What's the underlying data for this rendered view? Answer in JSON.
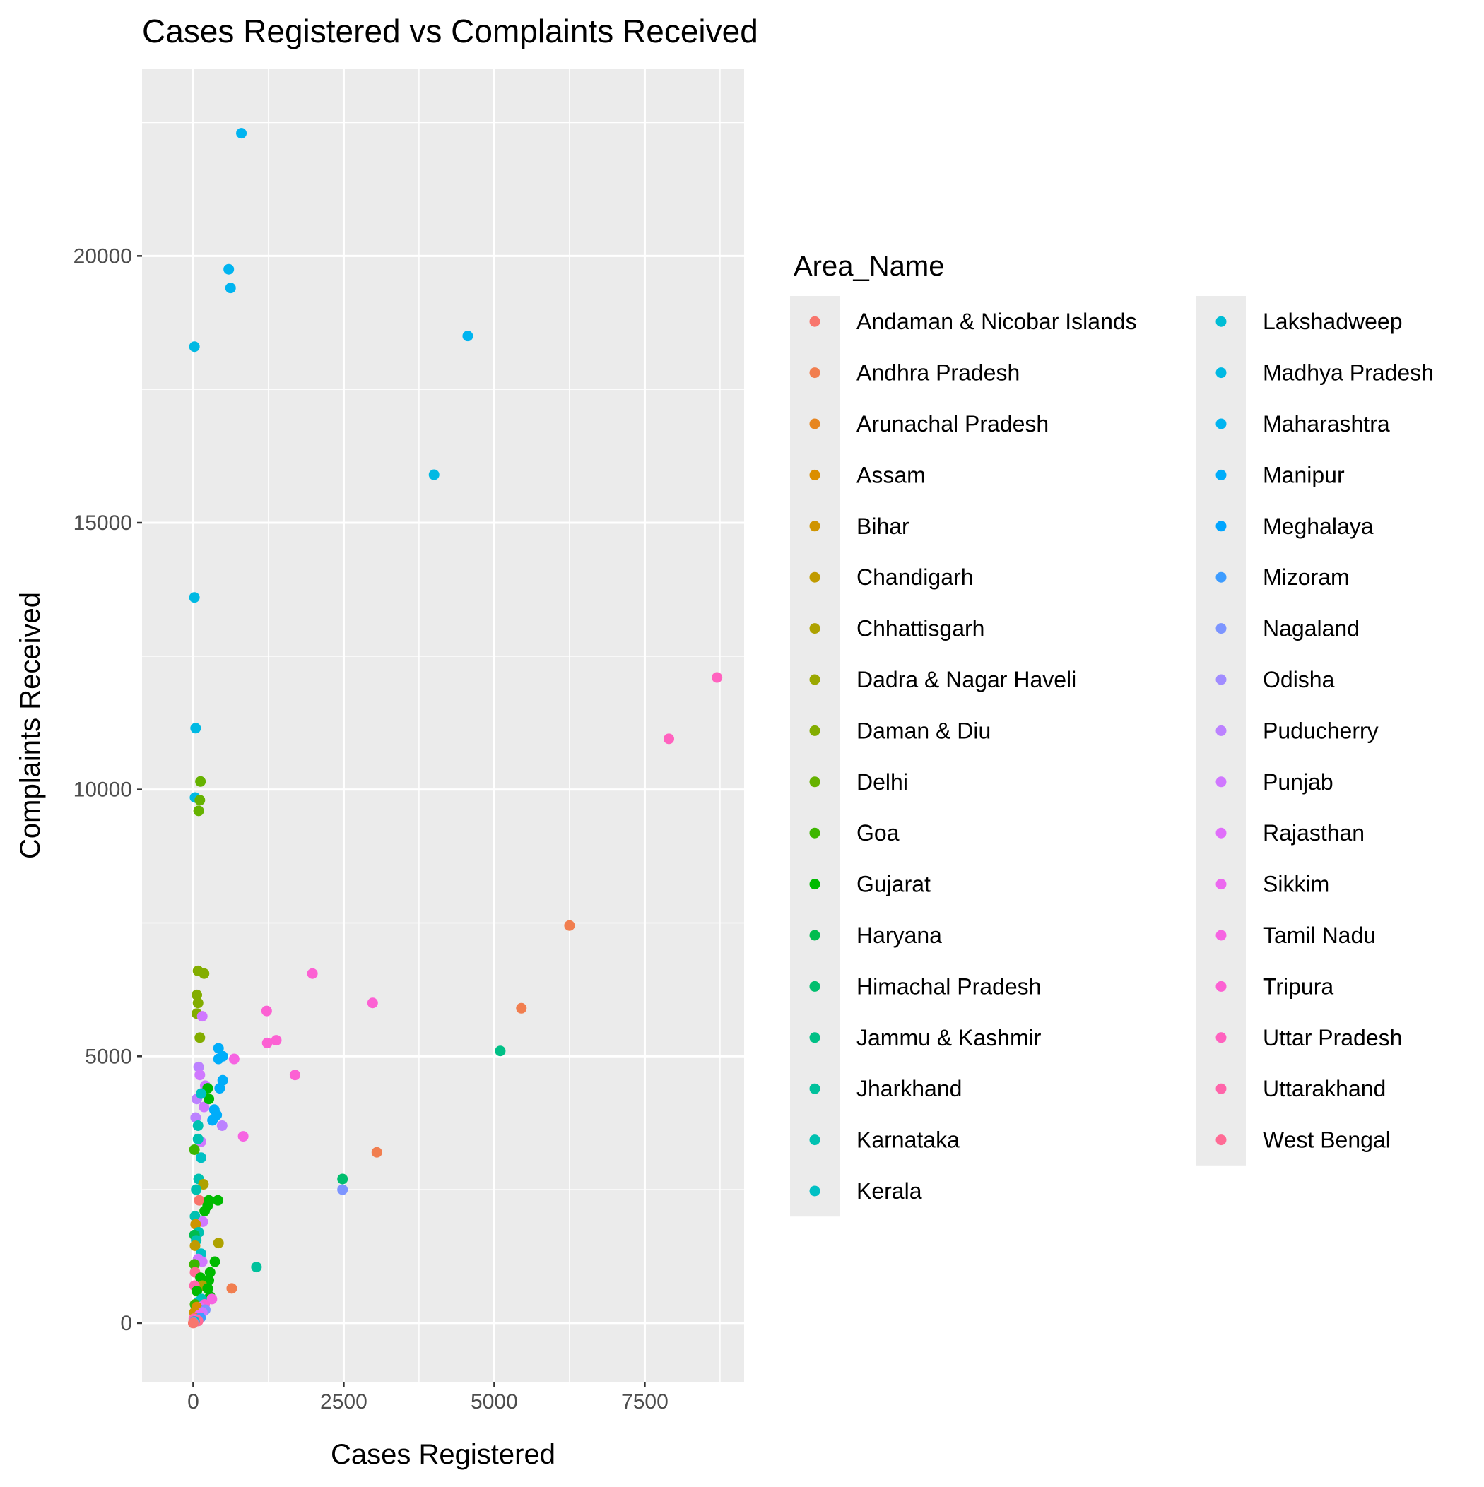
{
  "chart_data": {
    "type": "scatter",
    "title": "Cases Registered vs Complaints Received",
    "xlabel": "Cases Registered",
    "ylabel": "Complaints Received",
    "xlim": [
      -850,
      9150
    ],
    "ylim": [
      -1100,
      23500
    ],
    "x_ticks": [
      0,
      2500,
      5000,
      7500
    ],
    "y_ticks": [
      0,
      5000,
      10000,
      15000,
      20000
    ],
    "grid": true,
    "legend": {
      "title": "Area_Name",
      "placement": "right",
      "columns": 2,
      "entries": [
        {
          "name": "Andaman & Nicobar Islands",
          "color": "#F8766D"
        },
        {
          "name": "Andhra Pradesh",
          "color": "#F17E4F"
        },
        {
          "name": "Arunachal Pradesh",
          "color": "#E7851E"
        },
        {
          "name": "Assam",
          "color": "#DB8E00"
        },
        {
          "name": "Bihar",
          "color": "#CF9400"
        },
        {
          "name": "Chandigarh",
          "color": "#C09B00"
        },
        {
          "name": "Chhattisgarh",
          "color": "#AEA200"
        },
        {
          "name": "Dadra & Nagar Haveli",
          "color": "#9BA800"
        },
        {
          "name": "Daman & Diu",
          "color": "#83AD00"
        },
        {
          "name": "Delhi",
          "color": "#66B200"
        },
        {
          "name": "Goa",
          "color": "#3DB600"
        },
        {
          "name": "Gujarat",
          "color": "#00BA00"
        },
        {
          "name": "Haryana",
          "color": "#00BC4F"
        },
        {
          "name": "Himachal Pradesh",
          "color": "#00BE6E"
        },
        {
          "name": "Jammu & Kashmir",
          "color": "#00C086"
        },
        {
          "name": "Jharkhand",
          "color": "#00C19C"
        },
        {
          "name": "Karnataka",
          "color": "#00C1B1"
        },
        {
          "name": "Kerala",
          "color": "#00C0C4"
        },
        {
          "name": "Lakshadweep",
          "color": "#00BDD5"
        },
        {
          "name": "Madhya Pradesh",
          "color": "#00B9E3"
        },
        {
          "name": "Maharashtra",
          "color": "#00B4F0"
        },
        {
          "name": "Manipur",
          "color": "#00ADFA"
        },
        {
          "name": "Meghalaya",
          "color": "#00A5FF"
        },
        {
          "name": "Mizoram",
          "color": "#3D9CFF"
        },
        {
          "name": "Nagaland",
          "color": "#7D95FF"
        },
        {
          "name": "Odisha",
          "color": "#A18CFF"
        },
        {
          "name": "Puducherry",
          "color": "#BC82FF"
        },
        {
          "name": "Punjab",
          "color": "#D078FF"
        },
        {
          "name": "Rajasthan",
          "color": "#E06EFA"
        },
        {
          "name": "Sikkim",
          "color": "#EC69EF"
        },
        {
          "name": "Tamil Nadu",
          "color": "#F664E2"
        },
        {
          "name": "Tripura",
          "color": "#FC61D3"
        },
        {
          "name": "Uttar Pradesh",
          "color": "#FF62BF"
        },
        {
          "name": "Uttarakhand",
          "color": "#FF65AA"
        },
        {
          "name": "West Bengal",
          "color": "#FF6B95"
        }
      ]
    },
    "points": [
      {
        "x": 800,
        "y": 22300,
        "group": "Maharashtra"
      },
      {
        "x": 590,
        "y": 19750,
        "group": "Maharashtra"
      },
      {
        "x": 620,
        "y": 19400,
        "group": "Maharashtra"
      },
      {
        "x": 4560,
        "y": 18500,
        "group": "Maharashtra"
      },
      {
        "x": 20,
        "y": 18300,
        "group": "Madhya Pradesh"
      },
      {
        "x": 4000,
        "y": 15900,
        "group": "Madhya Pradesh"
      },
      {
        "x": 20,
        "y": 13600,
        "group": "Madhya Pradesh"
      },
      {
        "x": 40,
        "y": 11150,
        "group": "Madhya Pradesh"
      },
      {
        "x": 30,
        "y": 9850,
        "group": "Madhya Pradesh"
      },
      {
        "x": 8700,
        "y": 12100,
        "group": "Uttar Pradesh"
      },
      {
        "x": 7900,
        "y": 10950,
        "group": "Uttar Pradesh"
      },
      {
        "x": 120,
        "y": 10150,
        "group": "Delhi"
      },
      {
        "x": 110,
        "y": 9800,
        "group": "Delhi"
      },
      {
        "x": 90,
        "y": 9600,
        "group": "Delhi"
      },
      {
        "x": 6250,
        "y": 7450,
        "group": "Andhra Pradesh"
      },
      {
        "x": 5450,
        "y": 5900,
        "group": "Andhra Pradesh"
      },
      {
        "x": 3050,
        "y": 3200,
        "group": "Andhra Pradesh"
      },
      {
        "x": 640,
        "y": 650,
        "group": "Andhra Pradesh"
      },
      {
        "x": 5100,
        "y": 5100,
        "group": "Jammu & Kashmir"
      },
      {
        "x": 2480,
        "y": 2700,
        "group": "Himachal Pradesh"
      },
      {
        "x": 1050,
        "y": 1050,
        "group": "Jharkhand"
      },
      {
        "x": 2480,
        "y": 2500,
        "group": "Nagaland"
      },
      {
        "x": 1980,
        "y": 6550,
        "group": "Tripura"
      },
      {
        "x": 2980,
        "y": 6000,
        "group": "Tripura"
      },
      {
        "x": 1220,
        "y": 5850,
        "group": "Tripura"
      },
      {
        "x": 1380,
        "y": 5300,
        "group": "Tripura"
      },
      {
        "x": 1230,
        "y": 5250,
        "group": "Tripura"
      },
      {
        "x": 680,
        "y": 4950,
        "group": "Tamil Nadu"
      },
      {
        "x": 1690,
        "y": 4650,
        "group": "Tripura"
      },
      {
        "x": 830,
        "y": 3500,
        "group": "Tamil Nadu"
      },
      {
        "x": 80,
        "y": 6600,
        "group": "Daman & Diu"
      },
      {
        "x": 180,
        "y": 6550,
        "group": "Daman & Diu"
      },
      {
        "x": 60,
        "y": 6150,
        "group": "Daman & Diu"
      },
      {
        "x": 80,
        "y": 6000,
        "group": "Daman & Diu"
      },
      {
        "x": 60,
        "y": 5800,
        "group": "Daman & Diu"
      },
      {
        "x": 110,
        "y": 5350,
        "group": "Daman & Diu"
      },
      {
        "x": 150,
        "y": 5750,
        "group": "Punjab"
      },
      {
        "x": 420,
        "y": 5150,
        "group": "Manipur"
      },
      {
        "x": 420,
        "y": 4950,
        "group": "Manipur"
      },
      {
        "x": 490,
        "y": 5000,
        "group": "Manipur"
      },
      {
        "x": 490,
        "y": 4550,
        "group": "Manipur"
      },
      {
        "x": 440,
        "y": 4400,
        "group": "Manipur"
      },
      {
        "x": 350,
        "y": 4000,
        "group": "Manipur"
      },
      {
        "x": 390,
        "y": 3900,
        "group": "Manipur"
      },
      {
        "x": 320,
        "y": 3800,
        "group": "Manipur"
      },
      {
        "x": 90,
        "y": 4800,
        "group": "Puducherry"
      },
      {
        "x": 110,
        "y": 4650,
        "group": "Punjab"
      },
      {
        "x": 200,
        "y": 4450,
        "group": "Punjab"
      },
      {
        "x": 60,
        "y": 4200,
        "group": "Puducherry"
      },
      {
        "x": 180,
        "y": 4050,
        "group": "Punjab"
      },
      {
        "x": 40,
        "y": 3850,
        "group": "Puducherry"
      },
      {
        "x": 480,
        "y": 3700,
        "group": "Puducherry"
      },
      {
        "x": 130,
        "y": 3400,
        "group": "Punjab"
      },
      {
        "x": 240,
        "y": 4400,
        "group": "Gujarat"
      },
      {
        "x": 260,
        "y": 4200,
        "group": "Gujarat"
      },
      {
        "x": 130,
        "y": 4300,
        "group": "Kerala"
      },
      {
        "x": 80,
        "y": 3700,
        "group": "Karnataka"
      },
      {
        "x": 80,
        "y": 3450,
        "group": "Karnataka"
      },
      {
        "x": 130,
        "y": 3100,
        "group": "Kerala"
      },
      {
        "x": 20,
        "y": 3250,
        "group": "Goa"
      },
      {
        "x": 90,
        "y": 2700,
        "group": "Karnataka"
      },
      {
        "x": 170,
        "y": 2600,
        "group": "Chhattisgarh"
      },
      {
        "x": 50,
        "y": 2500,
        "group": "Karnataka"
      },
      {
        "x": 100,
        "y": 2300,
        "group": "Andaman & Nicobar Islands"
      },
      {
        "x": 410,
        "y": 2300,
        "group": "Gujarat"
      },
      {
        "x": 260,
        "y": 2300,
        "group": "Gujarat"
      },
      {
        "x": 240,
        "y": 2200,
        "group": "Gujarat"
      },
      {
        "x": 190,
        "y": 2100,
        "group": "Gujarat"
      },
      {
        "x": 30,
        "y": 2000,
        "group": "Karnataka"
      },
      {
        "x": 160,
        "y": 1900,
        "group": "Punjab"
      },
      {
        "x": 40,
        "y": 1850,
        "group": "Bihar"
      },
      {
        "x": 90,
        "y": 1700,
        "group": "Karnataka"
      },
      {
        "x": 20,
        "y": 1650,
        "group": "Haryana"
      },
      {
        "x": 50,
        "y": 1550,
        "group": "Karnataka"
      },
      {
        "x": 420,
        "y": 1500,
        "group": "Chhattisgarh"
      },
      {
        "x": 30,
        "y": 1450,
        "group": "Chandigarh"
      },
      {
        "x": 130,
        "y": 1300,
        "group": "Kerala"
      },
      {
        "x": 80,
        "y": 1200,
        "group": "Punjab"
      },
      {
        "x": 150,
        "y": 1150,
        "group": "Punjab"
      },
      {
        "x": 360,
        "y": 1150,
        "group": "Gujarat"
      },
      {
        "x": 20,
        "y": 1100,
        "group": "Goa"
      },
      {
        "x": 280,
        "y": 950,
        "group": "Gujarat"
      },
      {
        "x": 30,
        "y": 950,
        "group": "West Bengal"
      },
      {
        "x": 120,
        "y": 850,
        "group": "Gujarat"
      },
      {
        "x": 260,
        "y": 800,
        "group": "Gujarat"
      },
      {
        "x": 150,
        "y": 700,
        "group": "Chhattisgarh"
      },
      {
        "x": 20,
        "y": 700,
        "group": "Uttarakhand"
      },
      {
        "x": 240,
        "y": 650,
        "group": "Gujarat"
      },
      {
        "x": 60,
        "y": 600,
        "group": "Gujarat"
      },
      {
        "x": 280,
        "y": 500,
        "group": "Gujarat"
      },
      {
        "x": 310,
        "y": 450,
        "group": "Tamil Nadu"
      },
      {
        "x": 140,
        "y": 450,
        "group": "Karnataka"
      },
      {
        "x": 90,
        "y": 400,
        "group": "Kerala"
      },
      {
        "x": 30,
        "y": 350,
        "group": "Goa"
      },
      {
        "x": 190,
        "y": 350,
        "group": "Tripura"
      },
      {
        "x": 110,
        "y": 300,
        "group": "Rajasthan"
      },
      {
        "x": 60,
        "y": 300,
        "group": "Assam"
      },
      {
        "x": 200,
        "y": 250,
        "group": "Nagaland"
      },
      {
        "x": 150,
        "y": 200,
        "group": "Punjab"
      },
      {
        "x": 20,
        "y": 200,
        "group": "Bihar"
      },
      {
        "x": 100,
        "y": 150,
        "group": "Sikkim"
      },
      {
        "x": 40,
        "y": 100,
        "group": "Arunachal Pradesh"
      },
      {
        "x": 120,
        "y": 100,
        "group": "Mizoram"
      },
      {
        "x": 10,
        "y": 80,
        "group": "Uttarakhand"
      },
      {
        "x": 60,
        "y": 60,
        "group": "Tripura"
      },
      {
        "x": 80,
        "y": 40,
        "group": "West Bengal"
      },
      {
        "x": 20,
        "y": 30,
        "group": "Lakshadweep"
      },
      {
        "x": 5,
        "y": 10,
        "group": "Nagaland"
      },
      {
        "x": 0,
        "y": 0,
        "group": "Andaman & Nicobar Islands"
      }
    ]
  }
}
